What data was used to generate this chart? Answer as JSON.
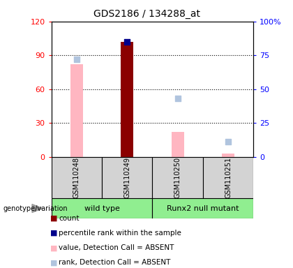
{
  "title": "GDS2186 / 134288_at",
  "samples": [
    "GSM110248",
    "GSM110249",
    "GSM110250",
    "GSM110251"
  ],
  "ylim_left": [
    0,
    120
  ],
  "ylim_right": [
    0,
    100
  ],
  "yticks_left": [
    0,
    30,
    60,
    90,
    120
  ],
  "yticks_right": [
    0,
    25,
    50,
    75,
    100
  ],
  "yticklabels_left": [
    "0",
    "30",
    "60",
    "90",
    "120"
  ],
  "yticklabels_right": [
    "0",
    "25",
    "50",
    "75",
    "100%"
  ],
  "count_values": [
    null,
    102,
    null,
    null
  ],
  "percentile_rank_values": [
    null,
    85,
    null,
    null
  ],
  "value_absent_values": [
    82,
    null,
    22,
    3
  ],
  "rank_absent_values": [
    72,
    null,
    43,
    11
  ],
  "count_color": "#8b0000",
  "percentile_color": "#00008b",
  "value_absent_color": "#ffb6c1",
  "rank_absent_color": "#b0c4de",
  "plot_bg": "#ffffff",
  "label_area_bg": "#d3d3d3",
  "group_area_bg": "#90ee90",
  "genotype_label": "genotype/variation",
  "group1_label": "wild type",
  "group2_label": "Runx2 null mutant",
  "legend_items": [
    {
      "label": "count",
      "color": "#8b0000",
      "type": "square"
    },
    {
      "label": "percentile rank within the sample",
      "color": "#00008b",
      "type": "square"
    },
    {
      "label": "value, Detection Call = ABSENT",
      "color": "#ffb6c1",
      "type": "square"
    },
    {
      "label": "rank, Detection Call = ABSENT",
      "color": "#b0c4de",
      "type": "square"
    }
  ]
}
